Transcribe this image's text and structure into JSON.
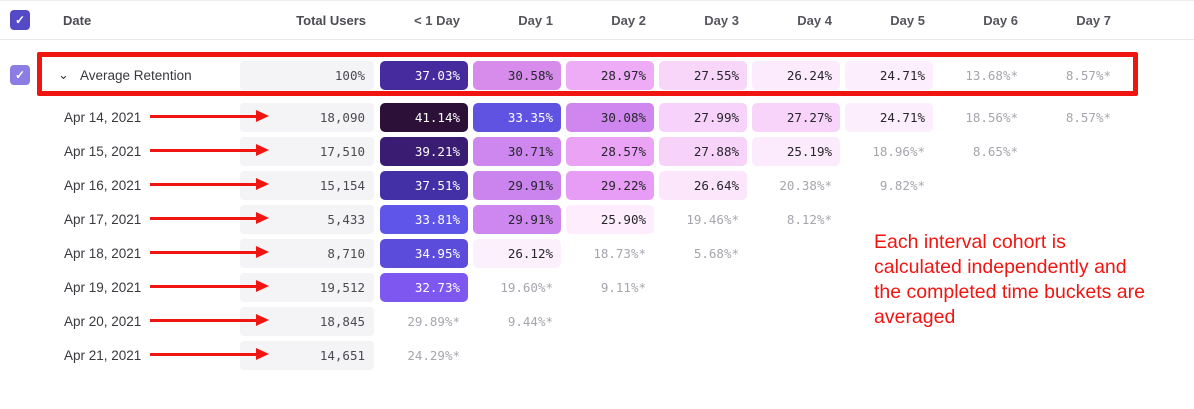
{
  "colors": {
    "accent": "#544ac6",
    "accent_light": "#8b7de4",
    "annotation_red": "#f01511",
    "total_cell_bg": "#f4f3f5",
    "muted_value": "#a5a5ad"
  },
  "icons": {
    "check": "✓",
    "chevron_down": "⌄"
  },
  "table": {
    "columns": [
      {
        "label": "Date"
      },
      {
        "label": "Total Users"
      },
      {
        "label": "< 1 Day"
      },
      {
        "label": "Day 1"
      },
      {
        "label": "Day 2"
      },
      {
        "label": "Day 3"
      },
      {
        "label": "Day 4"
      },
      {
        "label": "Day 5"
      },
      {
        "label": "Day 6"
      },
      {
        "label": "Day 7"
      }
    ],
    "select_all_checked": true,
    "rows": [
      {
        "label": "Average Retention",
        "type": "average",
        "checked": true,
        "total": "100%",
        "cells": [
          {
            "v": "37.03%",
            "bg": "#462b9e",
            "fg": "#ffffff"
          },
          {
            "v": "30.58%",
            "bg": "#d78cec",
            "fg": "#26262c"
          },
          {
            "v": "28.97%",
            "bg": "#eeabf6",
            "fg": "#26262c"
          },
          {
            "v": "27.55%",
            "bg": "#f8d6fa",
            "fg": "#26262c"
          },
          {
            "v": "26.24%",
            "bg": "#fcebfc",
            "fg": "#26262c"
          },
          {
            "v": "24.71%",
            "bg": "#fdeefd",
            "fg": "#26262c"
          },
          {
            "v": "13.68%*",
            "fg": "#a5a5ad"
          },
          {
            "v": "8.57%*",
            "fg": "#a5a5ad"
          }
        ]
      },
      {
        "label": "Apr 14, 2021",
        "type": "date",
        "total": "18,090",
        "cells": [
          {
            "v": "41.14%",
            "bg": "#2c1038",
            "fg": "#ffffff"
          },
          {
            "v": "33.35%",
            "bg": "#6153e2",
            "fg": "#ffffff"
          },
          {
            "v": "30.08%",
            "bg": "#d086ef",
            "fg": "#26262c"
          },
          {
            "v": "27.99%",
            "bg": "#f7d2fa",
            "fg": "#26262c"
          },
          {
            "v": "27.27%",
            "bg": "#f8d4fa",
            "fg": "#26262c"
          },
          {
            "v": "24.71%",
            "bg": "#fdeefd",
            "fg": "#26262c"
          },
          {
            "v": "18.56%*",
            "fg": "#a5a5ad"
          },
          {
            "v": "8.57%*",
            "fg": "#a5a5ad"
          }
        ]
      },
      {
        "label": "Apr 15, 2021",
        "type": "date",
        "total": "17,510",
        "cells": [
          {
            "v": "39.21%",
            "bg": "#3a1c72",
            "fg": "#ffffff"
          },
          {
            "v": "30.71%",
            "bg": "#cd87ee",
            "fg": "#26262c"
          },
          {
            "v": "28.57%",
            "bg": "#eba4f5",
            "fg": "#26262c"
          },
          {
            "v": "27.88%",
            "bg": "#f7d3fa",
            "fg": "#26262c"
          },
          {
            "v": "25.19%",
            "bg": "#fcebfc",
            "fg": "#26262c"
          },
          {
            "v": "18.96%*",
            "fg": "#a5a5ad"
          },
          {
            "v": "8.65%*",
            "fg": "#a5a5ad"
          }
        ]
      },
      {
        "label": "Apr 16, 2021",
        "type": "date",
        "total": "15,154",
        "cells": [
          {
            "v": "37.51%",
            "bg": "#4430a6",
            "fg": "#ffffff"
          },
          {
            "v": "29.91%",
            "bg": "#cb83ed",
            "fg": "#26262c"
          },
          {
            "v": "29.22%",
            "bg": "#e79df5",
            "fg": "#26262c"
          },
          {
            "v": "26.64%",
            "bg": "#fbe6fb",
            "fg": "#26262c"
          },
          {
            "v": "20.38%*",
            "fg": "#a5a5ad"
          },
          {
            "v": "9.82%*",
            "fg": "#a5a5ad"
          }
        ]
      },
      {
        "label": "Apr 17, 2021",
        "type": "date",
        "total": "5,433",
        "cells": [
          {
            "v": "33.81%",
            "bg": "#5f55e8",
            "fg": "#ffffff"
          },
          {
            "v": "29.91%",
            "bg": "#cd87ef",
            "fg": "#26262c"
          },
          {
            "v": "25.90%",
            "bg": "#fdedfd",
            "fg": "#26262c"
          },
          {
            "v": "19.46%*",
            "fg": "#a5a5ad"
          },
          {
            "v": "8.12%*",
            "fg": "#a5a5ad"
          }
        ]
      },
      {
        "label": "Apr 18, 2021",
        "type": "date",
        "total": "8,710",
        "cells": [
          {
            "v": "34.95%",
            "bg": "#5b4cdb",
            "fg": "#ffffff"
          },
          {
            "v": "26.12%",
            "bg": "#fdf0fd",
            "fg": "#26262c"
          },
          {
            "v": "18.73%*",
            "fg": "#a5a5ad"
          },
          {
            "v": "5.68%*",
            "fg": "#a5a5ad"
          }
        ]
      },
      {
        "label": "Apr 19, 2021",
        "type": "date",
        "total": "19,512",
        "cells": [
          {
            "v": "32.73%",
            "bg": "#7e57f0",
            "fg": "#ffffff"
          },
          {
            "v": "19.60%*",
            "fg": "#a5a5ad"
          },
          {
            "v": "9.11%*",
            "fg": "#a5a5ad"
          }
        ]
      },
      {
        "label": "Apr 20, 2021",
        "type": "date",
        "total": "18,845",
        "cells": [
          {
            "v": "29.89%*",
            "fg": "#a5a5ad"
          },
          {
            "v": "9.44%*",
            "fg": "#a5a5ad"
          }
        ]
      },
      {
        "label": "Apr 21, 2021",
        "type": "date",
        "total": "14,651",
        "cells": [
          {
            "v": "24.29%*",
            "fg": "#a5a5ad"
          }
        ]
      }
    ]
  },
  "annotations": {
    "note_lines": [
      "Each interval cohort is",
      "calculated independently and",
      "the completed time buckets are",
      "averaged"
    ],
    "note_text": "Each interval cohort is calculated independently and the completed time buckets are averaged"
  }
}
